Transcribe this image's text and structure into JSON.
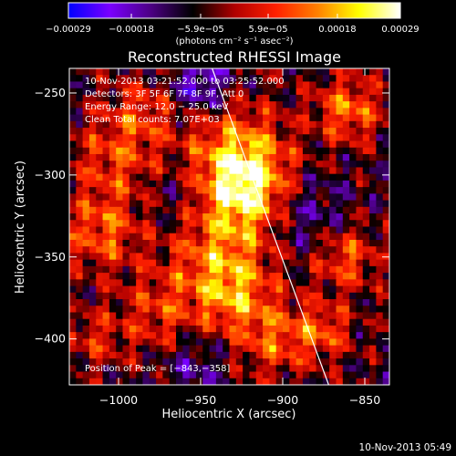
{
  "chart_data": {
    "type": "heatmap",
    "title": "Reconstructed RHESSI Image",
    "xlabel": "Heliocentric X (arcsec)",
    "ylabel": "Heliocentric Y (arcsec)",
    "xlim": [
      -1030,
      -835
    ],
    "ylim": [
      -428,
      -235
    ],
    "x_ticks": [
      -1000,
      -950,
      -900,
      -850
    ],
    "x_tick_labels": [
      "−1000",
      "−950",
      "−900",
      "−850"
    ],
    "y_ticks": [
      -250,
      -300,
      -350,
      -400
    ],
    "y_tick_labels": [
      "−250",
      "−300",
      "−350",
      "−400"
    ],
    "grid": false,
    "colorbar": {
      "position": "top",
      "range": [
        -0.00029,
        0.00029
      ],
      "ticks": [
        -0.00029,
        -0.00018,
        -5.9e-05,
        5.9e-05,
        0.00018,
        0.00029
      ],
      "tick_labels": [
        "−0.00029",
        "−0.00018",
        "−5.9e−05",
        "5.9e−05",
        "0.00018",
        "0.00029"
      ],
      "units_label": "(photons cm⁻² s⁻¹ asec⁻²)",
      "colormap": [
        "#0000ff",
        "#7a00ff",
        "#4b0082",
        "#000000",
        "#b00000",
        "#ff2000",
        "#ff8000",
        "#ffff00",
        "#ffffff"
      ]
    },
    "annotations": [
      "10-Nov-2013 03:21:52.000 to 03:25:52.000",
      "Detectors: 3F 5F 6F 7F 8F 9F, Att 0",
      "Energy Range: 12.0 − 25.0 keV",
      "Clean    Total counts: 7.07E+03",
      "Position of Peak = [−843,−358]"
    ],
    "peak_position": [
      -843,
      -358
    ],
    "limb_line": {
      "x": [
        -943,
        -872
      ],
      "y": [
        -235,
        -428
      ]
    },
    "color_field": {
      "background_value": -6e-05,
      "blobs": [
        {
          "x": -928,
          "y": -290,
          "sigma": 22,
          "value": 0.00022
        },
        {
          "x": -922,
          "y": -310,
          "sigma": 18,
          "value": 0.0002
        },
        {
          "x": -938,
          "y": -350,
          "sigma": 22,
          "value": 0.00018
        },
        {
          "x": -930,
          "y": -375,
          "sigma": 15,
          "value": 0.00014
        },
        {
          "x": -1000,
          "y": -290,
          "sigma": 20,
          "value": 0.00014
        },
        {
          "x": -1010,
          "y": -335,
          "sigma": 16,
          "value": 0.00016
        },
        {
          "x": -975,
          "y": -385,
          "sigma": 18,
          "value": 0.00012
        },
        {
          "x": -985,
          "y": -260,
          "sigma": 14,
          "value": 0.0001
        },
        {
          "x": -860,
          "y": -260,
          "sigma": 14,
          "value": 0.00018
        },
        {
          "x": -862,
          "y": -350,
          "sigma": 14,
          "value": 0.00016
        },
        {
          "x": -875,
          "y": -395,
          "sigma": 12,
          "value": 0.00014
        },
        {
          "x": -905,
          "y": -400,
          "sigma": 16,
          "value": 0.00015
        },
        {
          "x": -1015,
          "y": -400,
          "sigma": 12,
          "value": 0.0001
        },
        {
          "x": -950,
          "y": -245,
          "sigma": 12,
          "value": -0.00016
        },
        {
          "x": -885,
          "y": -325,
          "sigma": 18,
          "value": -0.0001
        },
        {
          "x": -965,
          "y": -310,
          "sigma": 16,
          "value": -8e-05
        },
        {
          "x": -955,
          "y": -415,
          "sigma": 14,
          "value": -9e-05
        }
      ],
      "texture_amplitude": 9e-05
    }
  },
  "footer": {
    "timestamp": "10-Nov-2013 05:49"
  }
}
